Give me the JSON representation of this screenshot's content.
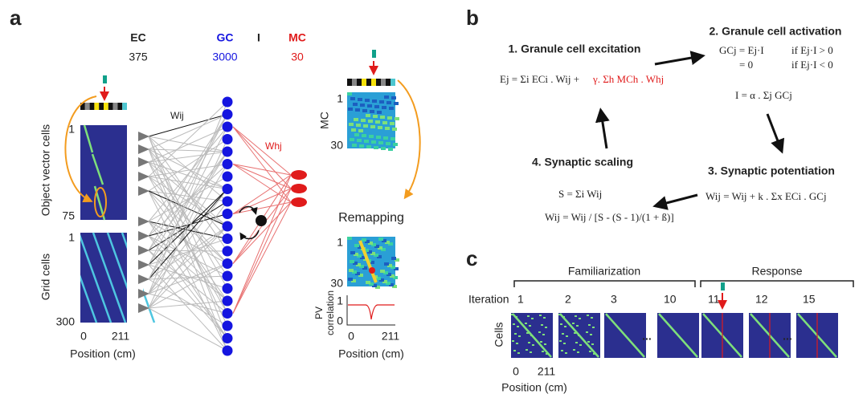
{
  "panel_a": {
    "label": "a",
    "ec": {
      "name": "EC",
      "count": "375"
    },
    "gc": {
      "name": "GC",
      "count": "3000"
    },
    "i": {
      "name": "I"
    },
    "mc": {
      "name": "MC",
      "count": "30"
    },
    "w_ij": "Wij",
    "w_hj": "Whj",
    "object_vector": {
      "label": "Object vector cells",
      "first": "1",
      "last": "75"
    },
    "grid": {
      "label": "Grid cells",
      "first": "1",
      "last": "300"
    },
    "left_x_axis": {
      "min": "0",
      "max": "211",
      "label": "Position (cm)"
    },
    "mc_map": {
      "label": "MC",
      "first": "1",
      "last": "30"
    },
    "remapping": {
      "title": "Remapping",
      "first": "1",
      "last": "30"
    },
    "pv": {
      "label_lines": [
        "PV",
        "correlation"
      ],
      "top": "1",
      "bottom": "0"
    },
    "right_x_axis": {
      "min": "0",
      "max": "211",
      "label": "Position (cm)"
    }
  },
  "panel_b": {
    "label": "b",
    "step1": {
      "title": "1. Granule cell excitation",
      "equation": "Ej = Σi ECi . Wij +",
      "equation_red": "γ. Σh MCh . Whj"
    },
    "step2": {
      "title": "2. Granule cell activation",
      "rows": [
        {
          "lhs": "GCj = Ej·I",
          "cond": "if Ej·I > 0"
        },
        {
          "lhs": "= 0",
          "cond": "if Ej·I < 0"
        }
      ],
      "inhibition": "I = α . Σj GCj"
    },
    "step3": {
      "title": "3. Synaptic potentiation",
      "equation": "Wij = Wij + k . Σx ECi . GCj"
    },
    "step4": {
      "title": "4. Synaptic scaling",
      "sum": "S = Σi Wij",
      "scaling": "Wij = Wij / [S - (S - 1)/(1 + ß)]"
    }
  },
  "panel_c": {
    "label": "c",
    "familiarization": "Familiarization",
    "response": "Response",
    "iteration": "Iteration",
    "iterations": [
      "1",
      "2",
      "3",
      "10",
      "11",
      "12",
      "15"
    ],
    "ellipses": [
      "...",
      "..."
    ],
    "cells": "Cells",
    "x_axis": {
      "min": "0",
      "max": "211",
      "label": "Position (cm)"
    }
  }
}
